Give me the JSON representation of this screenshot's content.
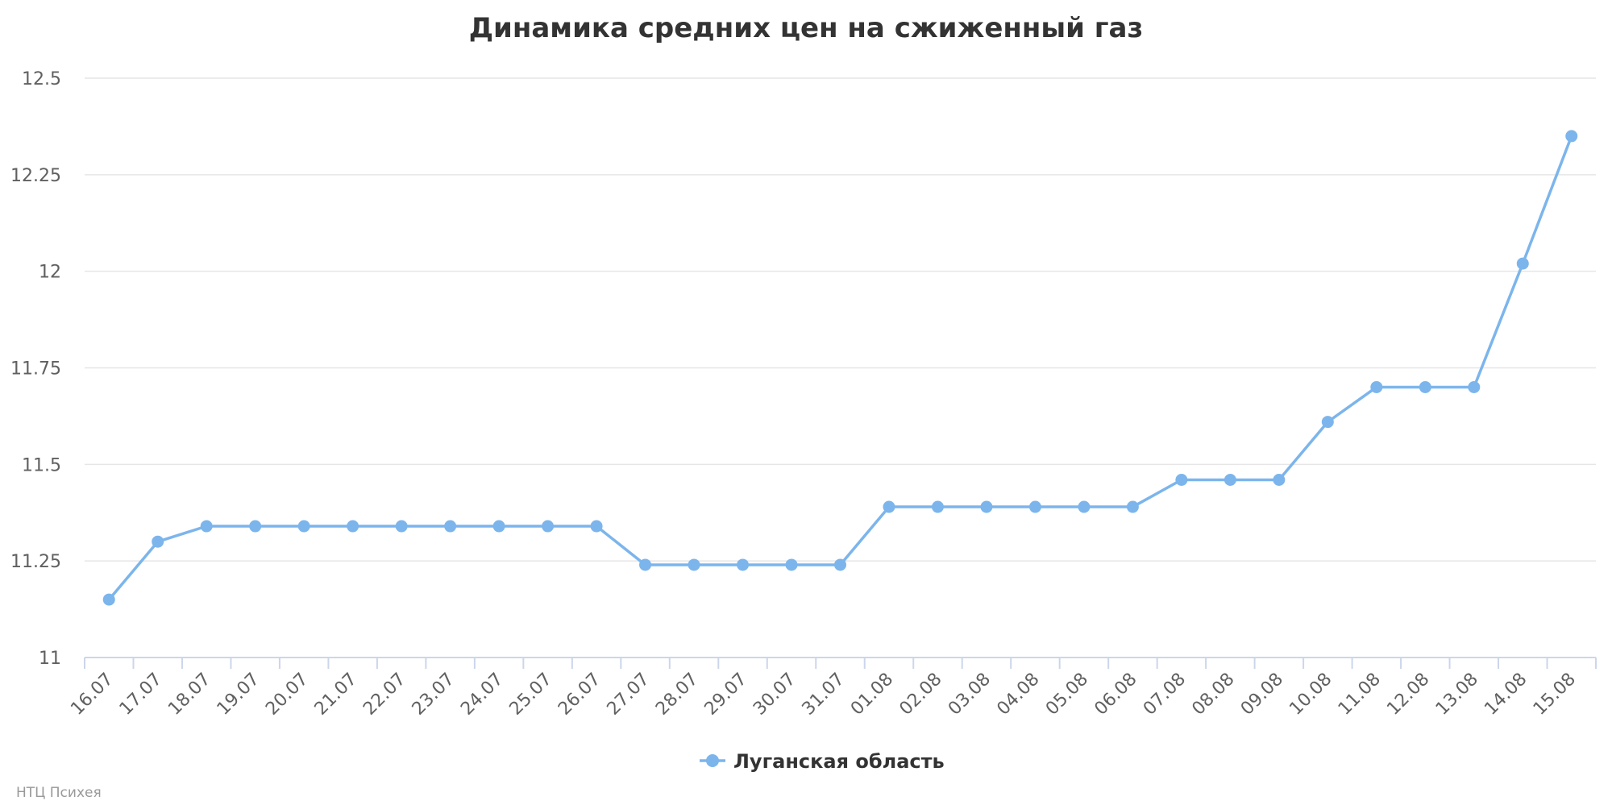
{
  "chart_data": {
    "type": "line",
    "title": "Динамика средних цен на сжиженный газ",
    "xlabel": "",
    "ylabel": "",
    "categories": [
      "16.07",
      "17.07",
      "18.07",
      "19.07",
      "20.07",
      "21.07",
      "22.07",
      "23.07",
      "24.07",
      "25.07",
      "26.07",
      "27.07",
      "28.07",
      "29.07",
      "30.07",
      "31.07",
      "01.08",
      "02.08",
      "03.08",
      "04.08",
      "05.08",
      "06.08",
      "07.08",
      "08.08",
      "09.08",
      "10.08",
      "11.08",
      "12.08",
      "13.08",
      "14.08",
      "15.08"
    ],
    "ylim": [
      11,
      12.5
    ],
    "yticks": [
      "11",
      "11.25",
      "11.5",
      "11.75",
      "12",
      "12.25",
      "12.5"
    ],
    "series": [
      {
        "name": "Луганская область",
        "color": "#7cb5ec",
        "values": [
          11.15,
          11.3,
          11.34,
          11.34,
          11.34,
          11.34,
          11.34,
          11.34,
          11.34,
          11.34,
          11.34,
          11.24,
          11.24,
          11.24,
          11.24,
          11.24,
          11.39,
          11.39,
          11.39,
          11.39,
          11.39,
          11.39,
          11.46,
          11.46,
          11.46,
          11.61,
          11.7,
          11.7,
          11.7,
          12.02,
          12.35
        ]
      }
    ],
    "grid": true,
    "legend_position": "bottom-center"
  },
  "credit": "НТЦ Психея"
}
